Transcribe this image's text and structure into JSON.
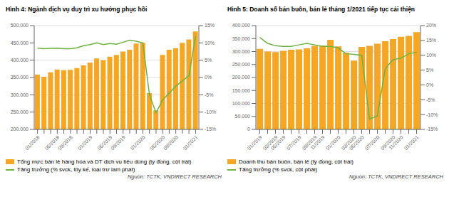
{
  "chart_data": [
    {
      "type": "bar",
      "title": "Hình 4: Ngành dịch vụ duy trì xu hướng phục hồi",
      "categories": [
        "01/2018",
        null,
        null,
        "05/2018",
        null,
        "09/2018",
        null,
        null,
        "01/2019",
        null,
        null,
        "05/2019",
        null,
        "09/2019",
        null,
        null,
        "01/2020",
        null,
        null,
        "05/2020",
        null,
        "09/2020",
        null,
        null,
        "01/2021"
      ],
      "series": [
        {
          "name": "Tổng mức bán lẻ hàng hóa và DT dịch vụ tiêu dùng (tỷ đồng, cột trái)",
          "type": "bar",
          "color": "#F5A623",
          "values": [
            358000,
            352000,
            365000,
            373000,
            371000,
            372000,
            377000,
            385000,
            393000,
            405000,
            400000,
            410000,
            415000,
            425000,
            430000,
            448000,
            450000,
            305000,
            255000,
            415000,
            430000,
            435000,
            450000,
            460000,
            483000
          ]
        },
        {
          "name": "Tăng trưởng (% svck, lũy kế, loại trừ lam phát)",
          "type": "line",
          "axis": "y2",
          "color": "#6DB33F",
          "values": [
            8.5,
            8.3,
            8.4,
            8.5,
            8.3,
            8.3,
            8.6,
            9.2,
            9.5,
            10.0,
            9.5,
            9.8,
            9.6,
            10.2,
            10.8,
            10.5,
            10.0,
            -5.0,
            -10.2,
            -6.5,
            -4.5,
            -2.5,
            -1.0,
            0.5,
            12.0
          ]
        }
      ],
      "ylim": [
        200000,
        500000
      ],
      "yticks": [
        {
          "value": 200000,
          "label": "200.000"
        },
        {
          "value": 250000,
          "label": "250.000"
        },
        {
          "value": 300000,
          "label": "300.000"
        },
        {
          "value": 350000,
          "label": "350.000"
        },
        {
          "value": 400000,
          "label": "400.000"
        },
        {
          "value": 450000,
          "label": "450.000"
        },
        {
          "value": 500000,
          "label": "500.000"
        }
      ],
      "y2lim": [
        -15,
        15
      ],
      "y2ticks": [
        {
          "value": -15,
          "label": "-15%"
        },
        {
          "value": -10,
          "label": "-10%"
        },
        {
          "value": -5,
          "label": "-5%"
        },
        {
          "value": 0,
          "label": "0%"
        },
        {
          "value": 5,
          "label": "5%"
        },
        {
          "value": 10,
          "label": "10%"
        },
        {
          "value": 15,
          "label": "15%"
        }
      ],
      "grid": true,
      "legend": "bottom",
      "annotations": [
        "Nguồn: TCTK, VNDIRECT RESEARCH"
      ]
    },
    {
      "type": "bar",
      "title": "Hình 5: Doanh số bán buôn, bán lẻ tháng 1/2021 tiếp tục cải thiện",
      "categories": [
        "01/2019",
        null,
        "03/2019",
        "05/2019",
        null,
        "07/2019",
        null,
        "09/2019",
        "11/2019",
        null,
        "01/2020",
        null,
        "03/2020",
        "05/2020",
        null,
        "07/2020",
        null,
        "09/2020",
        "11/2020",
        null,
        "01/2021"
      ],
      "series": [
        {
          "name": "Doanh thu bán buôn, bán lẻ (tỷ đồng, cột trái)",
          "type": "bar",
          "color": "#F5A623",
          "values": [
            310000,
            300000,
            298000,
            303000,
            307000,
            308000,
            312000,
            322000,
            323000,
            345000,
            320000,
            295000,
            265000,
            318000,
            322000,
            330000,
            340000,
            348000,
            357000,
            360000,
            375000
          ]
        },
        {
          "name": "Tăng trưởng (% svck, cột phải)",
          "type": "line",
          "axis": "y2",
          "color": "#6DB33F",
          "values": [
            16.0,
            14.0,
            13.2,
            13.0,
            13.0,
            13.5,
            14.0,
            13.5,
            13.0,
            13.0,
            12.5,
            10.5,
            10.3,
            10.0,
            -11.5,
            -10.5,
            5.5,
            8.5,
            9.0,
            10.5,
            11.0
          ]
        }
      ],
      "ylim": [
        0,
        400000
      ],
      "yticks": [
        0,
        {
          "value": 50000,
          "label": "50.000"
        },
        {
          "value": 100000,
          "label": "100.000"
        },
        {
          "value": 150000,
          "label": "150.000"
        },
        {
          "value": 200000,
          "label": "200.000"
        },
        {
          "value": 250000,
          "label": "250.000"
        },
        {
          "value": 300000,
          "label": "300.000"
        },
        {
          "value": 350000,
          "label": "350.000"
        },
        {
          "value": 400000,
          "label": "400.000"
        }
      ],
      "y2lim": [
        -15,
        20
      ],
      "y2ticks": [
        {
          "value": -15,
          "label": "-15%"
        },
        {
          "value": -10,
          "label": "-10%"
        },
        {
          "value": -5,
          "label": "-5%"
        },
        {
          "value": 0,
          "label": "0%"
        },
        {
          "value": 5,
          "label": "5%"
        },
        {
          "value": 10,
          "label": "10%"
        },
        {
          "value": 15,
          "label": "15%"
        },
        {
          "value": 20,
          "label": "20%"
        }
      ],
      "grid": true,
      "legend": "bottom",
      "annotations": [
        "Nguồn: TCTK, VNDIRECT RESEARCH"
      ]
    }
  ]
}
